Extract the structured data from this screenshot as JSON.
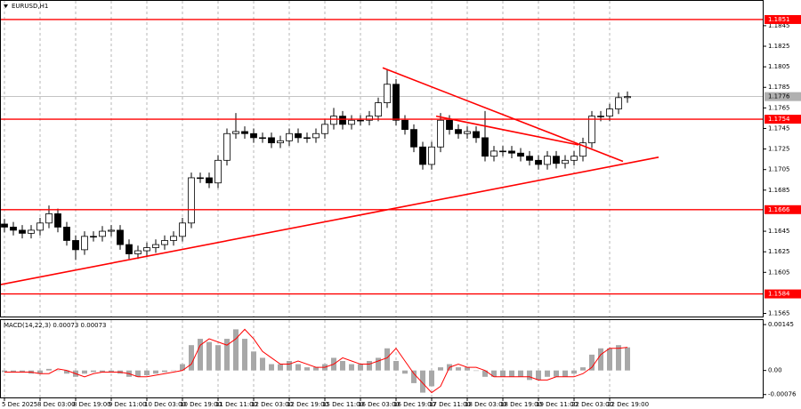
{
  "chart_data": [
    {
      "type": "candlestick",
      "title": "EURUSD,H1",
      "x": [
        0,
        1,
        2,
        3,
        4,
        5,
        6,
        7,
        8,
        9,
        10,
        11,
        12,
        13,
        14,
        15,
        16,
        17,
        18,
        19,
        20,
        21,
        22,
        23,
        24,
        25,
        26,
        27,
        28,
        29,
        30,
        31,
        32,
        33,
        34,
        35,
        36,
        37,
        38,
        39,
        40,
        41,
        42,
        43,
        44,
        45,
        46,
        47,
        48,
        49,
        50,
        51,
        52,
        53,
        54,
        55,
        56,
        57,
        58,
        59,
        60,
        61,
        62,
        63,
        64,
        65,
        66,
        67,
        68,
        69,
        70
      ],
      "open": [
        1.1652,
        1.1649,
        1.1646,
        1.1643,
        1.1646,
        1.1653,
        1.1662,
        1.1649,
        1.1636,
        1.1627,
        1.164,
        1.164,
        1.1645,
        1.1646,
        1.1632,
        1.1623,
        1.1626,
        1.1629,
        1.1632,
        1.1636,
        1.164,
        1.1653,
        1.1697,
        1.1697,
        1.1692,
        1.1714,
        1.174,
        1.1742,
        1.174,
        1.1736,
        1.1736,
        1.1731,
        1.1733,
        1.174,
        1.1736,
        1.1736,
        1.174,
        1.1749,
        1.1757,
        1.1749,
        1.1753,
        1.1753,
        1.1757,
        1.177,
        1.1788,
        1.1753,
        1.1744,
        1.1727,
        1.171,
        1.1727,
        1.1753,
        1.1744,
        1.174,
        1.1742,
        1.1736,
        1.1718,
        1.1723,
        1.1723,
        1.1721,
        1.1718,
        1.1714,
        1.171,
        1.1718,
        1.1711,
        1.1714,
        1.1718,
        1.1731,
        1.1757,
        1.1757,
        1.1764,
        1.1775
      ],
      "high": [
        1.1657,
        1.1654,
        1.1651,
        1.1651,
        1.1658,
        1.167,
        1.1667,
        1.1654,
        1.1641,
        1.1645,
        1.1645,
        1.165,
        1.1651,
        1.1651,
        1.1637,
        1.1631,
        1.1634,
        1.1637,
        1.1641,
        1.1645,
        1.1658,
        1.1702,
        1.1702,
        1.1702,
        1.1719,
        1.1745,
        1.176,
        1.1747,
        1.1745,
        1.1741,
        1.1741,
        1.1738,
        1.1745,
        1.1745,
        1.1741,
        1.1745,
        1.1754,
        1.1765,
        1.1762,
        1.1758,
        1.1758,
        1.1762,
        1.1775,
        1.1802,
        1.1793,
        1.1758,
        1.1749,
        1.1732,
        1.1732,
        1.176,
        1.1758,
        1.1749,
        1.1747,
        1.1747,
        1.1762,
        1.1728,
        1.1728,
        1.1728,
        1.1726,
        1.1723,
        1.1719,
        1.1723,
        1.1723,
        1.1719,
        1.1723,
        1.1736,
        1.1762,
        1.1762,
        1.1769,
        1.178,
        1.1781
      ],
      "low": [
        1.1644,
        1.1641,
        1.1638,
        1.1638,
        1.1641,
        1.1648,
        1.1644,
        1.1631,
        1.1617,
        1.1622,
        1.1635,
        1.1635,
        1.164,
        1.1627,
        1.1618,
        1.1618,
        1.1621,
        1.1624,
        1.1627,
        1.1631,
        1.1635,
        1.1648,
        1.1692,
        1.1687,
        1.1687,
        1.1709,
        1.1735,
        1.1735,
        1.1731,
        1.1731,
        1.1726,
        1.1726,
        1.1728,
        1.1731,
        1.1731,
        1.1731,
        1.1735,
        1.1744,
        1.1744,
        1.1744,
        1.1748,
        1.1748,
        1.1752,
        1.1765,
        1.1748,
        1.1739,
        1.1722,
        1.1705,
        1.1705,
        1.1722,
        1.1739,
        1.1735,
        1.1735,
        1.1731,
        1.1713,
        1.1713,
        1.1718,
        1.1716,
        1.1713,
        1.1709,
        1.1705,
        1.1705,
        1.1706,
        1.1706,
        1.1709,
        1.1713,
        1.1726,
        1.1752,
        1.1752,
        1.1759,
        1.177
      ],
      "close": [
        1.1649,
        1.1646,
        1.1643,
        1.1646,
        1.1653,
        1.1662,
        1.1649,
        1.1636,
        1.1627,
        1.164,
        1.164,
        1.1645,
        1.1646,
        1.1632,
        1.1623,
        1.1626,
        1.1629,
        1.1632,
        1.1636,
        1.164,
        1.1653,
        1.1697,
        1.1697,
        1.1692,
        1.1714,
        1.174,
        1.1742,
        1.174,
        1.1736,
        1.1736,
        1.1731,
        1.1733,
        1.174,
        1.1736,
        1.1736,
        1.174,
        1.1749,
        1.1757,
        1.1749,
        1.1753,
        1.1753,
        1.1757,
        1.177,
        1.1788,
        1.1753,
        1.1744,
        1.1727,
        1.171,
        1.1727,
        1.1753,
        1.1744,
        1.174,
        1.1742,
        1.1736,
        1.1718,
        1.1723,
        1.1723,
        1.1721,
        1.1718,
        1.1714,
        1.171,
        1.1718,
        1.1711,
        1.1714,
        1.1718,
        1.1731,
        1.1757,
        1.1757,
        1.1764,
        1.1775,
        1.1776
      ],
      "up_color": "#ffffff",
      "down_color": "#000000",
      "wick_color": "#000000",
      "xlim": [
        -0.5,
        85.3
      ],
      "ylim": [
        1.1562,
        1.187
      ],
      "yticks": [
        1.1845,
        1.1825,
        1.1805,
        1.1785,
        1.1765,
        1.1745,
        1.1725,
        1.1705,
        1.1685,
        1.1645,
        1.1625,
        1.1605,
        1.1565
      ],
      "xticks": [
        {
          "value": 0,
          "label": "5 Dec 2025"
        },
        {
          "value": 4,
          "label": "8 Dec 03:00"
        },
        {
          "value": 8,
          "label": "8 Dec 19:00"
        },
        {
          "value": 12,
          "label": "9 Dec 11:00"
        },
        {
          "value": 16,
          "label": "10 Dec 03:00"
        },
        {
          "value": 20,
          "label": "10 Dec 19:00"
        },
        {
          "value": 24,
          "label": "11 Dec 11:00"
        },
        {
          "value": 28,
          "label": "12 Dec 03:00"
        },
        {
          "value": 32,
          "label": "12 Dec 19:00"
        },
        {
          "value": 36,
          "label": "15 Dec 11:00"
        },
        {
          "value": 40,
          "label": "16 Dec 03:00"
        },
        {
          "value": 44,
          "label": "16 Dec 19:00"
        },
        {
          "value": 48,
          "label": "17 Dec 11:00"
        },
        {
          "value": 52,
          "label": "18 Dec 03:00"
        },
        {
          "value": 56,
          "label": "18 Dec 19:00"
        },
        {
          "value": 60,
          "label": "19 Dec 11:00"
        },
        {
          "value": 64,
          "label": "22 Dec 03:00"
        },
        {
          "value": 68,
          "label": "22 Dec 19:00"
        }
      ],
      "grid": true,
      "levels": [
        1.1851,
        1.1754,
        1.1666,
        1.1584
      ],
      "level_color": "#ff0000",
      "current_price": 1.1776,
      "current_color": "#b0b0b0",
      "trendlines": [
        {
          "x": [
            -0.5,
            73.5
          ],
          "y": [
            1.1593,
            1.1717
          ]
        },
        {
          "x": [
            42.5,
            69.5
          ],
          "y": [
            1.1804,
            1.1713
          ]
        },
        {
          "x": [
            48.5,
            64.5
          ],
          "y": [
            1.1757,
            1.1729
          ]
        }
      ],
      "trend_color": "#ff0000"
    },
    {
      "type": "macd",
      "title": "MACD(14,22,3) 0.00073 0.00073",
      "histogram": [
        -5e-05,
        -5e-05,
        -5e-05,
        -0.0001,
        -0.0001,
        5e-05,
        0,
        -0.0001,
        -0.0002,
        -0.0001,
        -5e-05,
        -5e-05,
        -5e-05,
        -0.0001,
        -0.0002,
        -0.0002,
        -0.00015,
        -0.0001,
        -5e-05,
        0,
        0.0002,
        0.0008,
        0.001,
        0.0009,
        0.0008,
        0.001,
        0.0013,
        0.001,
        0.0006,
        0.0004,
        0.0002,
        0.0002,
        0.0003,
        0.0002,
        0.0001,
        0.0001,
        0.0002,
        0.0004,
        0.0003,
        0.0002,
        0.0002,
        0.0003,
        0.0004,
        0.0007,
        0.0003,
        -0.0001,
        -0.0004,
        -0.0007,
        -0.0005,
        0.0001,
        0.0002,
        0.0001,
        0.0001,
        0,
        -0.0002,
        -0.0002,
        -0.0002,
        -0.0002,
        -0.0002,
        -0.0003,
        -0.0003,
        -0.0002,
        -0.0002,
        -0.0002,
        -0.0001,
        0.0001,
        0.0005,
        0.0007,
        0.0007,
        0.0008,
        0.00073
      ],
      "signal": [
        -5e-05,
        -5e-05,
        -5e-05,
        -5e-05,
        -0.0001,
        -0.0001,
        5e-05,
        0,
        -0.0001,
        -0.0002,
        -0.0001,
        -5e-05,
        -5e-05,
        -5e-05,
        -0.0001,
        -0.0002,
        -0.0002,
        -0.00015,
        -0.0001,
        -5e-05,
        0,
        0.0002,
        0.0008,
        0.001,
        0.0009,
        0.0008,
        0.001,
        0.0013,
        0.001,
        0.0006,
        0.0004,
        0.0002,
        0.0002,
        0.0003,
        0.0002,
        0.0001,
        0.0001,
        0.0002,
        0.0004,
        0.0003,
        0.0002,
        0.0002,
        0.0003,
        0.0004,
        0.0007,
        0.0003,
        -0.0001,
        -0.0004,
        -0.0007,
        -0.0005,
        0.0001,
        0.0002,
        0.0001,
        0.0001,
        0,
        -0.0002,
        -0.0002,
        -0.0002,
        -0.0002,
        -0.0002,
        -0.0003,
        -0.0003,
        -0.0002,
        -0.0002,
        -0.0002,
        -0.0001,
        0.0001,
        0.0005,
        0.0007,
        0.0007,
        0.00073
      ],
      "histogram_color": "#a8a8a8",
      "signal_color": "#ff0000",
      "ylim": [
        -0.00088,
        0.00162
      ],
      "yticks": [
        0.00145,
        {
          "value": 0,
          "label": "0.00"
        },
        -0.00076
      ]
    }
  ]
}
